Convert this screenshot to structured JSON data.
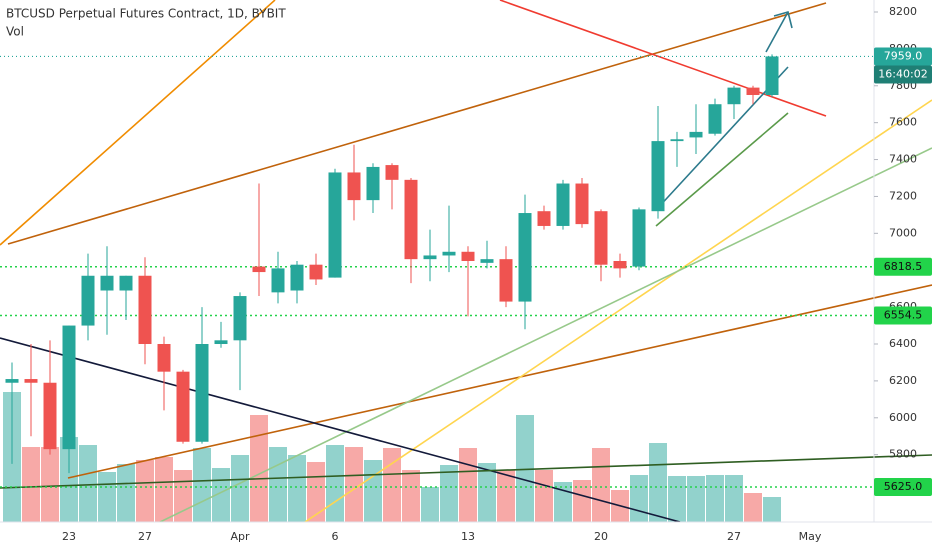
{
  "header": {
    "title": "BTCUSD Perpetual Futures Contract, 1D, BYBIT",
    "volume_label": "Vol"
  },
  "chart_data": {
    "type": "candlestick",
    "categories": [
      null,
      null,
      null,
      "23",
      null,
      null,
      null,
      "27",
      null,
      null,
      null,
      null,
      "Apr",
      null,
      null,
      null,
      null,
      "6",
      null,
      null,
      null,
      null,
      null,
      null,
      "13",
      null,
      null,
      null,
      null,
      null,
      null,
      "20",
      null,
      null,
      null,
      null,
      null,
      null,
      "27",
      null,
      null,
      null,
      "May",
      null,
      null,
      null
    ],
    "open": [
      6190,
      6210,
      6190,
      5830,
      6500,
      6690,
      6690,
      6770,
      6400,
      6250,
      5870,
      6400,
      6420,
      6820,
      6680,
      6690,
      6830,
      6760,
      7330,
      7180,
      7370,
      7290,
      6860,
      6880,
      6900,
      6840,
      6860,
      6630,
      7120,
      7040,
      7270,
      7120,
      6850,
      6820,
      7120,
      7500,
      7520,
      7540,
      7700,
      7790,
      7750,
      null,
      null,
      null,
      null,
      null
    ],
    "high": [
      6300,
      6400,
      6420,
      6500,
      6890,
      6930,
      6770,
      6870,
      6440,
      6260,
      6600,
      6520,
      6680,
      7270,
      6900,
      6850,
      6890,
      7350,
      7480,
      7380,
      7380,
      7300,
      7020,
      7150,
      6930,
      6960,
      6930,
      7210,
      7150,
      7290,
      7300,
      7130,
      6890,
      7140,
      7690,
      7550,
      7700,
      7730,
      7800,
      7800,
      7970,
      null,
      null,
      null,
      null,
      null
    ],
    "low": [
      5750,
      5900,
      5800,
      5700,
      6420,
      6450,
      6530,
      6290,
      6040,
      5860,
      5860,
      6380,
      6150,
      6660,
      6620,
      6620,
      6720,
      6760,
      7070,
      7110,
      7130,
      6730,
      6740,
      6790,
      6550,
      6810,
      6600,
      6480,
      7020,
      7020,
      7030,
      6740,
      6760,
      6800,
      7080,
      7360,
      7430,
      7530,
      7620,
      7700,
      7740,
      null,
      null,
      null,
      null,
      null
    ],
    "close": [
      6210,
      6190,
      5830,
      6500,
      6770,
      6770,
      6770,
      6400,
      6250,
      5870,
      6400,
      6420,
      6660,
      6790,
      6810,
      6830,
      6750,
      7330,
      7180,
      7360,
      7290,
      6860,
      6880,
      6900,
      6850,
      6860,
      6630,
      7110,
      7040,
      7270,
      7050,
      6830,
      6810,
      7130,
      7500,
      7510,
      7550,
      7700,
      7790,
      7750,
      7959,
      null,
      null,
      null,
      null,
      null
    ],
    "volume": [
      130,
      75,
      75,
      85,
      77,
      50,
      58,
      62,
      65,
      52,
      74,
      54,
      67,
      107,
      75,
      67,
      60,
      77,
      75,
      62,
      74,
      52,
      35,
      57,
      74,
      59,
      52,
      107,
      52,
      40,
      42,
      74,
      32,
      47,
      79,
      46,
      46,
      47,
      47,
      29,
      25,
      null,
      null,
      null,
      null,
      null
    ],
    "volume_ylim": [
      0,
      140
    ],
    "up_color": "#26a69a",
    "down_color": "#ef5350",
    "ylim": [
      5435,
      8265
    ],
    "yticks": [
      5800,
      6000,
      6200,
      6400,
      6600,
      6800,
      7000,
      7200,
      7400,
      7600,
      7800,
      8000,
      8200
    ],
    "levels": [
      {
        "value": 6818.5,
        "label": "6818.5"
      },
      {
        "value": 6554.5,
        "label": "6554.5"
      },
      {
        "value": 5625,
        "label": "5625.0"
      }
    ],
    "level_color": "#22d34a",
    "last_price": {
      "value": 7959,
      "label": "7959.0"
    },
    "countdown": "16:40:02"
  }
}
